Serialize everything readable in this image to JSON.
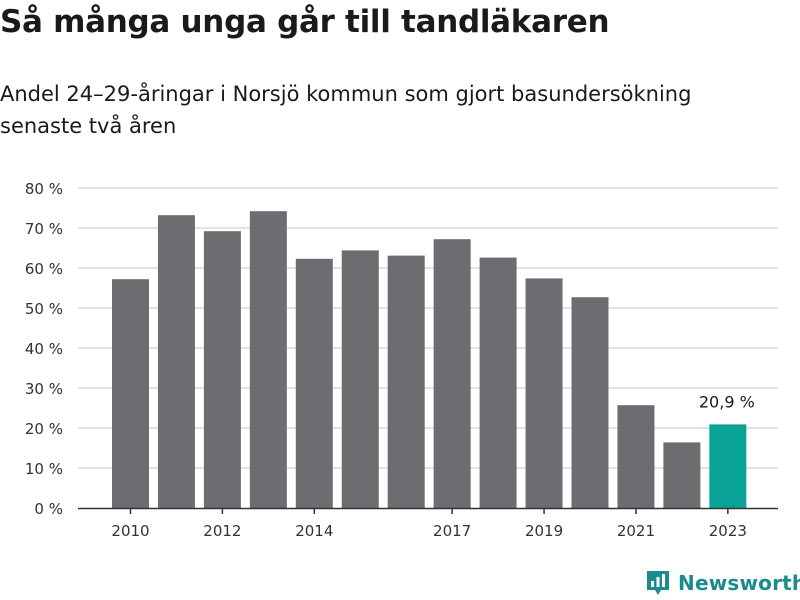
{
  "title": "Så många unga går till tandläkaren",
  "subtitle": "Andel 24–29-åringar i Norsjö kommun som gjort basundersökning senaste två åren",
  "brand": {
    "name": "Newsworthy",
    "icon": "newsworthy-logo-icon"
  },
  "colors": {
    "bar": "#6d6c71",
    "highlight": "#0aa398",
    "grid": "#dcdcdc",
    "axis": "#333333",
    "brand": "#1b8c8c"
  },
  "chart_data": {
    "type": "bar",
    "title": "Så många unga går till tandläkaren",
    "xlabel": "",
    "ylabel": "",
    "ylim": [
      0,
      80
    ],
    "yticks": [
      0,
      10,
      20,
      30,
      40,
      50,
      60,
      70,
      80
    ],
    "ytick_labels": [
      "0 %",
      "10 %",
      "20 %",
      "30 %",
      "40 %",
      "50 %",
      "60 %",
      "70 %",
      "80 %"
    ],
    "categories": [
      "2010",
      "2011",
      "2012",
      "2013",
      "2014",
      "2015",
      "2016",
      "2017",
      "2018",
      "2019",
      "2020",
      "2021",
      "2022",
      "2023"
    ],
    "xtick_labels": [
      "2010",
      "2012",
      "2014",
      "2017",
      "2019",
      "2021",
      "2023"
    ],
    "values": [
      57.2,
      73.2,
      69.2,
      74.2,
      62.3,
      64.4,
      63.1,
      67.2,
      62.6,
      57.4,
      52.7,
      25.7,
      16.4,
      20.9
    ],
    "highlight_index": 13,
    "annotation": "20,9 %",
    "grid": true
  }
}
